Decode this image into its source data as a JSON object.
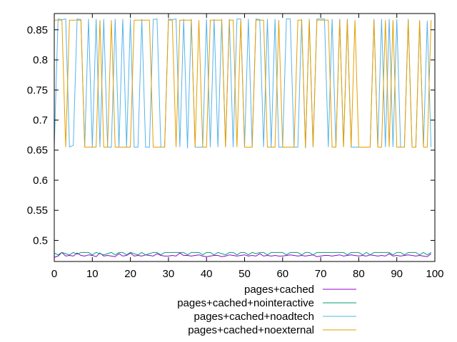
{
  "chart_data": {
    "type": "line",
    "title": "",
    "xlabel": "",
    "ylabel": "",
    "xlim": [
      0,
      100
    ],
    "ylim": [
      0.465,
      0.877
    ],
    "x_ticks": [
      "0",
      "10",
      "20",
      "30",
      "40",
      "50",
      "60",
      "70",
      "80",
      "90",
      "100"
    ],
    "y_ticks": [
      "0.5",
      "0.55",
      "0.6",
      "0.65",
      "0.7",
      "0.75",
      "0.8",
      "0.85"
    ],
    "grid": false,
    "legend_position": "bottom",
    "x": [
      0,
      1,
      2,
      3,
      4,
      5,
      6,
      7,
      8,
      9,
      10,
      11,
      12,
      13,
      14,
      15,
      16,
      17,
      18,
      19,
      20,
      21,
      22,
      23,
      24,
      25,
      26,
      27,
      28,
      29,
      30,
      31,
      32,
      33,
      34,
      35,
      36,
      37,
      38,
      39,
      40,
      41,
      42,
      43,
      44,
      45,
      46,
      47,
      48,
      49,
      50,
      51,
      52,
      53,
      54,
      55,
      56,
      57,
      58,
      59,
      60,
      61,
      62,
      63,
      64,
      65,
      66,
      67,
      68,
      69,
      70,
      71,
      72,
      73,
      74,
      75,
      76,
      77,
      78,
      79,
      80,
      81,
      82,
      83,
      84,
      85,
      86,
      87,
      88,
      89,
      90,
      91,
      92,
      93,
      94,
      95,
      96,
      97,
      98,
      99
    ],
    "series": [
      {
        "name": "pages+cached",
        "color": "#9400d3",
        "values": [
          0.472,
          0.474,
          0.48,
          0.474,
          0.475,
          0.474,
          0.479,
          0.475,
          0.474,
          0.476,
          0.475,
          0.473,
          0.479,
          0.474,
          0.475,
          0.474,
          0.473,
          0.478,
          0.474,
          0.475,
          0.479,
          0.474,
          0.475,
          0.474,
          0.476,
          0.475,
          0.474,
          0.478,
          0.475,
          0.474,
          0.474,
          0.475,
          0.474,
          0.479,
          0.475,
          0.475,
          0.474,
          0.475,
          0.476,
          0.474,
          0.473,
          0.474,
          0.475,
          0.475,
          0.473,
          0.474,
          0.476,
          0.475,
          0.474,
          0.475,
          0.476,
          0.474,
          0.475,
          0.474,
          0.478,
          0.474,
          0.475,
          0.474,
          0.475,
          0.474,
          0.474,
          0.475,
          0.476,
          0.475,
          0.474,
          0.475,
          0.474,
          0.475,
          0.476,
          0.473,
          0.474,
          0.475,
          0.475,
          0.474,
          0.475,
          0.476,
          0.474,
          0.475,
          0.476,
          0.475,
          0.474,
          0.475,
          0.474,
          0.476,
          0.475,
          0.474,
          0.475,
          0.474,
          0.478,
          0.474,
          0.475,
          0.474,
          0.475,
          0.476,
          0.475,
          0.474,
          0.475,
          0.474,
          0.473,
          0.478
        ]
      },
      {
        "name": "pages+cached+nointeractive",
        "color": "#009e73",
        "values": [
          0.479,
          0.476,
          0.48,
          0.478,
          0.476,
          0.48,
          0.477,
          0.48,
          0.48,
          0.48,
          0.476,
          0.48,
          0.478,
          0.476,
          0.478,
          0.48,
          0.476,
          0.48,
          0.48,
          0.476,
          0.48,
          0.478,
          0.476,
          0.48,
          0.476,
          0.478,
          0.48,
          0.48,
          0.476,
          0.48,
          0.48,
          0.48,
          0.48,
          0.48,
          0.48,
          0.476,
          0.48,
          0.48,
          0.48,
          0.476,
          0.48,
          0.48,
          0.476,
          0.48,
          0.478,
          0.476,
          0.48,
          0.48,
          0.476,
          0.48,
          0.48,
          0.476,
          0.48,
          0.478,
          0.48,
          0.48,
          0.476,
          0.48,
          0.48,
          0.48,
          0.48,
          0.476,
          0.48,
          0.48,
          0.48,
          0.476,
          0.48,
          0.48,
          0.476,
          0.48,
          0.48,
          0.48,
          0.48,
          0.48,
          0.48,
          0.48,
          0.48,
          0.476,
          0.48,
          0.48,
          0.48,
          0.476,
          0.48,
          0.476,
          0.48,
          0.48,
          0.48,
          0.48,
          0.48,
          0.476,
          0.48,
          0.48,
          0.476,
          0.48,
          0.48,
          0.48,
          0.476,
          0.48,
          0.476,
          0.48
        ]
      },
      {
        "name": "pages+cached+noadtech",
        "color": "#56b4e9",
        "values": [
          0.655,
          0.868,
          0.867,
          0.868,
          0.655,
          0.658,
          0.868,
          0.867,
          0.655,
          0.868,
          0.655,
          0.868,
          0.655,
          0.868,
          0.655,
          0.655,
          0.868,
          0.655,
          0.868,
          0.655,
          0.868,
          0.655,
          0.655,
          0.868,
          0.655,
          0.655,
          0.867,
          0.868,
          0.655,
          0.655,
          0.868,
          0.867,
          0.868,
          0.655,
          0.868,
          0.653,
          0.868,
          0.655,
          0.655,
          0.655,
          0.868,
          0.655,
          0.868,
          0.655,
          0.868,
          0.655,
          0.868,
          0.655,
          0.868,
          0.868,
          0.655,
          0.868,
          0.655,
          0.868,
          0.867,
          0.655,
          0.868,
          0.655,
          0.868,
          0.655,
          0.655,
          0.868,
          0.868,
          0.655,
          0.655,
          0.868,
          0.653,
          0.868,
          0.655,
          0.868,
          0.868,
          0.868,
          0.655,
          0.868,
          0.655,
          0.868,
          0.655,
          0.868,
          0.655,
          0.655,
          0.655,
          0.655,
          0.655,
          0.655,
          0.868,
          0.655,
          0.868,
          0.655,
          0.868,
          0.655,
          0.868,
          0.655,
          0.655,
          0.868,
          0.655,
          0.655,
          0.864,
          0.655,
          0.865,
          0.655
        ]
      },
      {
        "name": "pages+cached+noexternal",
        "color": "#e69f00",
        "values": [
          0.866,
          0.866,
          0.866,
          0.655,
          0.866,
          0.866,
          0.866,
          0.866,
          0.655,
          0.655,
          0.655,
          0.655,
          0.866,
          0.655,
          0.655,
          0.866,
          0.655,
          0.655,
          0.655,
          0.655,
          0.655,
          0.866,
          0.866,
          0.866,
          0.866,
          0.866,
          0.655,
          0.655,
          0.655,
          0.655,
          0.866,
          0.866,
          0.655,
          0.866,
          0.866,
          0.866,
          0.866,
          0.655,
          0.866,
          0.655,
          0.655,
          0.866,
          0.866,
          0.866,
          0.866,
          0.655,
          0.866,
          0.866,
          0.655,
          0.866,
          0.655,
          0.655,
          0.655,
          0.866,
          0.866,
          0.866,
          0.655,
          0.655,
          0.655,
          0.866,
          0.655,
          0.655,
          0.655,
          0.655,
          0.866,
          0.866,
          0.655,
          0.866,
          0.655,
          0.866,
          0.866,
          0.866,
          0.866,
          0.655,
          0.655,
          0.866,
          0.655,
          0.866,
          0.655,
          0.866,
          0.655,
          0.655,
          0.655,
          0.655,
          0.866,
          0.655,
          0.655,
          0.866,
          0.655,
          0.866,
          0.655,
          0.655,
          0.655,
          0.866,
          0.655,
          0.655,
          0.866,
          0.655,
          0.655,
          0.866
        ]
      }
    ]
  }
}
